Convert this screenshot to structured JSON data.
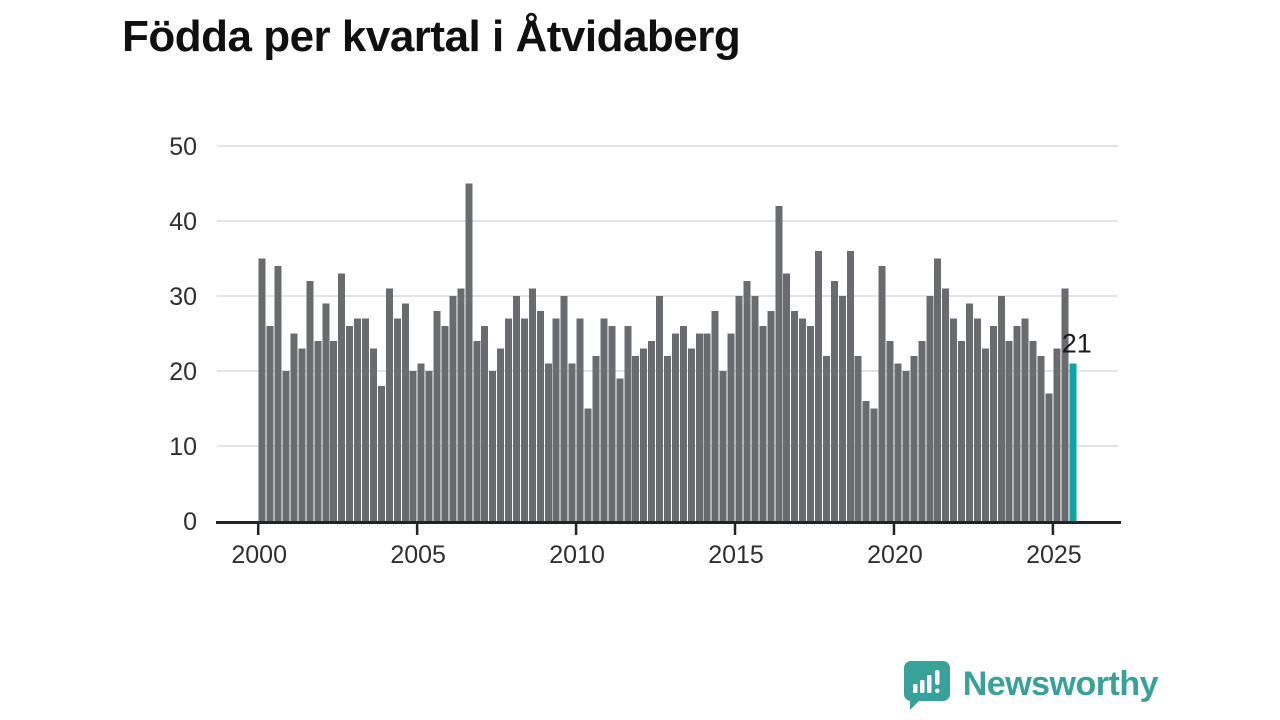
{
  "page": {
    "background": "#ffffff"
  },
  "chart_data": {
    "type": "bar",
    "title": "Födda per kvartal i Åtvidaberg",
    "x_type": "quarterly",
    "x_start": "2000 Q1",
    "x_end": "2025 Q3",
    "values_by_year": {
      "2000": [
        35,
        26,
        34,
        20
      ],
      "2001": [
        25,
        23,
        32,
        24
      ],
      "2002": [
        29,
        24,
        33,
        26
      ],
      "2003": [
        27,
        27,
        23,
        18
      ],
      "2004": [
        31,
        27,
        29,
        20
      ],
      "2005": [
        21,
        20,
        28,
        26
      ],
      "2006": [
        30,
        31,
        45,
        24
      ],
      "2007": [
        26,
        20,
        23,
        27
      ],
      "2008": [
        30,
        27,
        31,
        28
      ],
      "2009": [
        21,
        27,
        30,
        21
      ],
      "2010": [
        27,
        15,
        22,
        27
      ],
      "2011": [
        26,
        19,
        26,
        22
      ],
      "2012": [
        23,
        24,
        30,
        22
      ],
      "2013": [
        25,
        26,
        23,
        25
      ],
      "2014": [
        25,
        28,
        20,
        25
      ],
      "2015": [
        30,
        32,
        30,
        26
      ],
      "2016": [
        28,
        42,
        33,
        28
      ],
      "2017": [
        27,
        26,
        36,
        22
      ],
      "2018": [
        32,
        30,
        36,
        22
      ],
      "2019": [
        16,
        15,
        34,
        24
      ],
      "2020": [
        21,
        20,
        22,
        24
      ],
      "2021": [
        30,
        35,
        31,
        27
      ],
      "2022": [
        24,
        29,
        27,
        23
      ],
      "2023": [
        26,
        30,
        24,
        26
      ],
      "2024": [
        27,
        24,
        22,
        17
      ],
      "2025": [
        23,
        31,
        21
      ]
    },
    "ylim": [
      0,
      50
    ],
    "yticks": [
      0,
      10,
      20,
      30,
      40,
      50
    ],
    "xticks": [
      2000,
      2005,
      2010,
      2015,
      2020,
      2025
    ],
    "grid": true,
    "legend": "none",
    "highlight_last": true,
    "annotation": {
      "text": "21",
      "target": "2025 Q3"
    },
    "colors": {
      "bar": "#696b6e",
      "highlight": "#0ba5a5",
      "grid": "#e4e4e4",
      "axis": "#222426",
      "tick_label": "#2f2f2f",
      "annotation": "#1c1c1c"
    }
  },
  "logo": {
    "text": "Newsworthy",
    "color": "#38a29a",
    "icon": "speech-bubble-bar-chart-exclamation"
  }
}
